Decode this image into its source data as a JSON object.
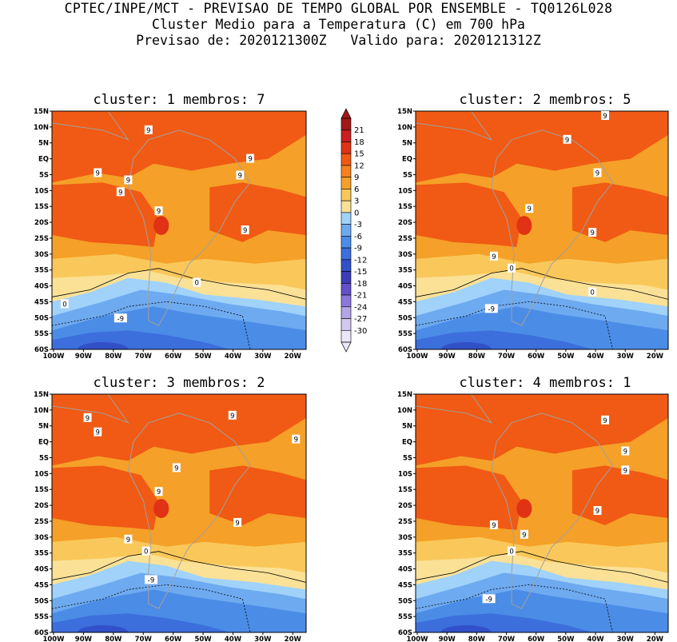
{
  "header": {
    "line1": "CPTEC/INPE/MCT - PREVISAO DE TEMPO GLOBAL POR ENSEMBLE - TQ0126L028",
    "line2": "Cluster Medio para a Temperatura (C) em 700 hPa",
    "line3": "Previsao de: 2020121300Z   Valido para: 2020121312Z"
  },
  "colorbar": {
    "labels": [
      "21",
      "18",
      "15",
      "12",
      "9",
      "6",
      "3",
      "0",
      "-3",
      "-6",
      "-9",
      "-12",
      "-15",
      "-18",
      "-21",
      "-24",
      "-27",
      "-30"
    ],
    "colors": [
      "#a01818",
      "#c81e1e",
      "#e03214",
      "#f05a14",
      "#f5821e",
      "#f5a028",
      "#fac85a",
      "#fae196",
      "#a0d2fa",
      "#6eaaf0",
      "#4b8ce6",
      "#3c6edc",
      "#3250c8",
      "#3c3cb4",
      "#6450c8",
      "#8c78dc",
      "#b4a5e6",
      "#d2c8f0",
      "#ebe6fa"
    ]
  },
  "axes": {
    "lat_labels": [
      "15N",
      "10N",
      "5N",
      "EQ",
      "5S",
      "10S",
      "15S",
      "20S",
      "25S",
      "30S",
      "35S",
      "40S",
      "45S",
      "50S",
      "55S",
      "60S"
    ],
    "lon_labels": [
      "100W",
      "90W",
      "80W",
      "70W",
      "60W",
      "50W",
      "40W",
      "30W",
      "20W"
    ]
  },
  "panels": [
    {
      "title": "cluster: 1   membros: 7",
      "contour_labels": [
        "9",
        "9",
        "9",
        "9",
        "9",
        "9",
        "9",
        "9",
        "0",
        "0",
        "-9"
      ]
    },
    {
      "title": "cluster: 2   membros: 5",
      "contour_labels": [
        "9",
        "9",
        "9",
        "9",
        "9",
        "9",
        "0",
        "0",
        "-9"
      ]
    },
    {
      "title": "cluster: 3   membros: 2",
      "contour_labels": [
        "9",
        "9",
        "9",
        "9",
        "9",
        "9",
        "9",
        "9",
        "0",
        "-9"
      ]
    },
    {
      "title": "cluster: 4   membros: 1",
      "contour_labels": [
        "9",
        "9",
        "9",
        "9",
        "9",
        "9",
        "0",
        "-9"
      ]
    }
  ]
}
